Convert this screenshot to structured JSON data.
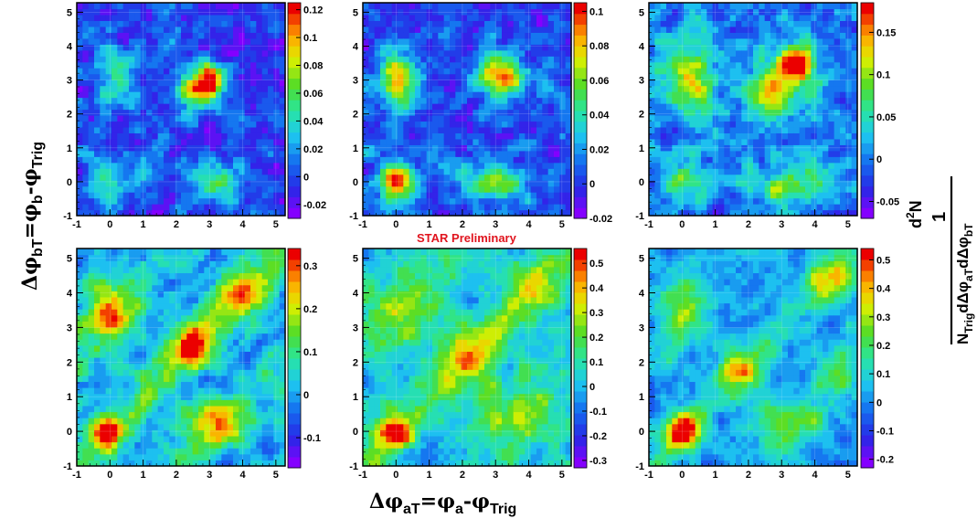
{
  "figure": {
    "preliminary_label": "STAR Preliminary",
    "x_axis_label": {
      "prefix": "Δφ",
      "sub1": "aT",
      "middle": "=φ",
      "sub2": "a",
      "dash": "-φ",
      "sub3": "Trig"
    },
    "y_axis_label": {
      "prefix": "Δφ",
      "sub1": "bT",
      "middle": "=φ",
      "sub2": "b",
      "dash": "-φ",
      "sub3": "Trig"
    },
    "z_axis_label": {
      "numerator": "1",
      "denominator_prefix": "N",
      "denominator_sub": "Trig",
      "denominator_d1": "dΔφ",
      "denominator_d1_sub": "aT",
      "denominator_d2": "dΔφ",
      "denominator_d2_sub": "bT",
      "second_line_num": "d",
      "second_line_sup": "2",
      "second_line_N": "N"
    }
  },
  "chart_data": [
    {
      "type": "heatmap",
      "panel": "top-left",
      "x_ticks": [
        "-1",
        "0",
        "1",
        "2",
        "3",
        "4",
        "5"
      ],
      "y_ticks": [
        "-1",
        "0",
        "1",
        "2",
        "3",
        "4",
        "5"
      ],
      "xlim": [
        -1,
        5.28
      ],
      "ylim": [
        -1,
        5.28
      ],
      "zlim": [
        -0.03,
        0.125
      ],
      "z_ticks": [
        "-0.02",
        "0",
        "0.02",
        "0.04",
        "0.06",
        "0.08",
        "0.1",
        "0.12"
      ],
      "z_tick_values": [
        -0.02,
        0,
        0.02,
        0.04,
        0.06,
        0.08,
        0.1,
        0.12
      ],
      "peaks": [
        {
          "x": 3.0,
          "y": 3.0,
          "value": 0.12,
          "sx": 0.35,
          "sy": 0.35
        },
        {
          "x": 2.5,
          "y": 2.7,
          "value": 0.07,
          "sx": 0.4,
          "sy": 0.4
        },
        {
          "x": 0.2,
          "y": 3.3,
          "value": 0.05,
          "sx": 0.5,
          "sy": 0.6
        },
        {
          "x": 3.2,
          "y": 0.0,
          "value": 0.05,
          "sx": 0.6,
          "sy": 0.4
        },
        {
          "x": 0.0,
          "y": 0.0,
          "value": 0.04,
          "sx": 0.5,
          "sy": 0.4
        }
      ],
      "base": 0.0,
      "noise": 0.018
    },
    {
      "type": "heatmap",
      "panel": "top-middle",
      "x_ticks": [
        "-1",
        "0",
        "1",
        "2",
        "3",
        "4",
        "5"
      ],
      "y_ticks": [
        "-1",
        "0",
        "1",
        "2",
        "3",
        "4",
        "5"
      ],
      "xlim": [
        -1,
        5.28
      ],
      "ylim": [
        -1,
        5.28
      ],
      "zlim": [
        -0.02,
        0.105
      ],
      "z_ticks": [
        "-0.02",
        "0",
        "0.02",
        "0.04",
        "0.06",
        "0.08",
        "0.1"
      ],
      "z_tick_values": [
        -0.02,
        0,
        0.02,
        0.04,
        0.06,
        0.08,
        0.1
      ],
      "peaks": [
        {
          "x": 3.2,
          "y": 3.1,
          "value": 0.1,
          "sx": 0.45,
          "sy": 0.4
        },
        {
          "x": 0.0,
          "y": 3.0,
          "value": 0.08,
          "sx": 0.4,
          "sy": 0.6
        },
        {
          "x": 0.0,
          "y": 0.0,
          "value": 0.1,
          "sx": 0.35,
          "sy": 0.35
        },
        {
          "x": 3.0,
          "y": 0.0,
          "value": 0.07,
          "sx": 0.6,
          "sy": 0.35
        }
      ],
      "base": 0.005,
      "noise": 0.014
    },
    {
      "type": "heatmap",
      "panel": "top-right",
      "x_ticks": [
        "-1",
        "0",
        "1",
        "2",
        "3",
        "4",
        "5"
      ],
      "y_ticks": [
        "-1",
        "0",
        "1",
        "2",
        "3",
        "4",
        "5"
      ],
      "xlim": [
        -1,
        5.28
      ],
      "ylim": [
        -1,
        5.28
      ],
      "zlim": [
        -0.07,
        0.185
      ],
      "z_ticks": [
        "-0.05",
        "0",
        "0.05",
        "0.1",
        "0.15"
      ],
      "z_tick_values": [
        -0.05,
        0,
        0.05,
        0.1,
        0.15
      ],
      "peaks": [
        {
          "x": 3.5,
          "y": 3.5,
          "value": 0.17,
          "sx": 0.4,
          "sy": 0.4
        },
        {
          "x": 2.8,
          "y": 2.8,
          "value": 0.12,
          "sx": 0.6,
          "sy": 0.6
        },
        {
          "x": 0.2,
          "y": 3.0,
          "value": 0.11,
          "sx": 0.5,
          "sy": 0.8
        },
        {
          "x": 3.2,
          "y": 0.0,
          "value": 0.1,
          "sx": 0.8,
          "sy": 0.4
        },
        {
          "x": 0.0,
          "y": 0.0,
          "value": 0.09,
          "sx": 0.45,
          "sy": 0.4
        }
      ],
      "base": 0.0,
      "noise": 0.03
    },
    {
      "type": "heatmap",
      "panel": "bottom-left",
      "x_ticks": [
        "-1",
        "0",
        "1",
        "2",
        "3",
        "4",
        "5"
      ],
      "y_ticks": [
        "-1",
        "0",
        "1",
        "2",
        "3",
        "4",
        "5"
      ],
      "xlim": [
        -1,
        5.28
      ],
      "ylim": [
        -1,
        5.28
      ],
      "zlim": [
        -0.17,
        0.34
      ],
      "z_ticks": [
        "-0.1",
        "0",
        "0.1",
        "0.2",
        "0.3"
      ],
      "z_tick_values": [
        -0.1,
        0,
        0.1,
        0.2,
        0.3
      ],
      "peaks": [
        {
          "x": -0.1,
          "y": 0.0,
          "value": 0.33,
          "sx": 0.3,
          "sy": 0.3
        },
        {
          "x": 2.5,
          "y": 2.5,
          "value": 0.28,
          "sx": 0.45,
          "sy": 0.45
        },
        {
          "x": 0.0,
          "y": 3.5,
          "value": 0.22,
          "sx": 0.5,
          "sy": 0.6
        },
        {
          "x": 4.0,
          "y": 4.0,
          "value": 0.2,
          "sx": 0.5,
          "sy": 0.5
        },
        {
          "x": 3.2,
          "y": 0.2,
          "value": 0.2,
          "sx": 0.8,
          "sy": 0.4
        }
      ],
      "diagonal": 0.12,
      "base": 0.0,
      "noise": 0.05
    },
    {
      "type": "heatmap",
      "panel": "bottom-middle",
      "x_ticks": [
        "-1",
        "0",
        "1",
        "2",
        "3",
        "4",
        "5"
      ],
      "y_ticks": [
        "-1",
        "0",
        "1",
        "2",
        "3",
        "4",
        "5"
      ],
      "xlim": [
        -1,
        5.28
      ],
      "ylim": [
        -1,
        5.28
      ],
      "zlim": [
        -0.33,
        0.56
      ],
      "z_ticks": [
        "-0.3",
        "-0.2",
        "-0.1",
        "0",
        "0.1",
        "0.2",
        "0.3",
        "0.4",
        "0.5"
      ],
      "z_tick_values": [
        -0.3,
        -0.2,
        -0.1,
        0,
        0.1,
        0.2,
        0.3,
        0.4,
        0.5
      ],
      "peaks": [
        {
          "x": 0.0,
          "y": 0.0,
          "value": 0.52,
          "sx": 0.35,
          "sy": 0.3
        },
        {
          "x": 2.2,
          "y": 2.2,
          "value": 0.3,
          "sx": 0.6,
          "sy": 0.6
        },
        {
          "x": 0.2,
          "y": 3.5,
          "value": 0.22,
          "sx": 0.6,
          "sy": 0.8
        },
        {
          "x": 3.5,
          "y": 0.5,
          "value": 0.22,
          "sx": 0.8,
          "sy": 0.6
        },
        {
          "x": 4.2,
          "y": 4.2,
          "value": 0.2,
          "sx": 0.6,
          "sy": 0.6
        }
      ],
      "diagonal": 0.14,
      "base": 0.02,
      "noise": 0.08
    },
    {
      "type": "heatmap",
      "panel": "bottom-right",
      "x_ticks": [
        "-1",
        "0",
        "1",
        "2",
        "3",
        "4",
        "5"
      ],
      "y_ticks": [
        "-1",
        "0",
        "1",
        "2",
        "3",
        "4",
        "5"
      ],
      "xlim": [
        -1,
        5.28
      ],
      "ylim": [
        -1,
        5.28
      ],
      "zlim": [
        -0.23,
        0.54
      ],
      "z_ticks": [
        "-0.2",
        "-0.1",
        "0",
        "0.1",
        "0.2",
        "0.3",
        "0.4",
        "0.5"
      ],
      "z_tick_values": [
        -0.2,
        -0.1,
        0,
        0.1,
        0.2,
        0.3,
        0.4,
        0.5
      ],
      "peaks": [
        {
          "x": 0.0,
          "y": 0.0,
          "value": 0.52,
          "sx": 0.35,
          "sy": 0.35
        },
        {
          "x": 1.8,
          "y": 1.8,
          "value": 0.3,
          "sx": 0.5,
          "sy": 0.5
        },
        {
          "x": 4.5,
          "y": 4.5,
          "value": 0.3,
          "sx": 0.5,
          "sy": 0.5
        },
        {
          "x": 0.0,
          "y": 3.5,
          "value": 0.22,
          "sx": 0.5,
          "sy": 0.8
        },
        {
          "x": 3.2,
          "y": 0.2,
          "value": 0.22,
          "sx": 0.8,
          "sy": 0.5
        },
        {
          "x": 4.6,
          "y": 1.8,
          "value": 0.2,
          "sx": 0.4,
          "sy": 0.5
        }
      ],
      "diagonal": 0.12,
      "base": 0.0,
      "noise": 0.06
    }
  ]
}
